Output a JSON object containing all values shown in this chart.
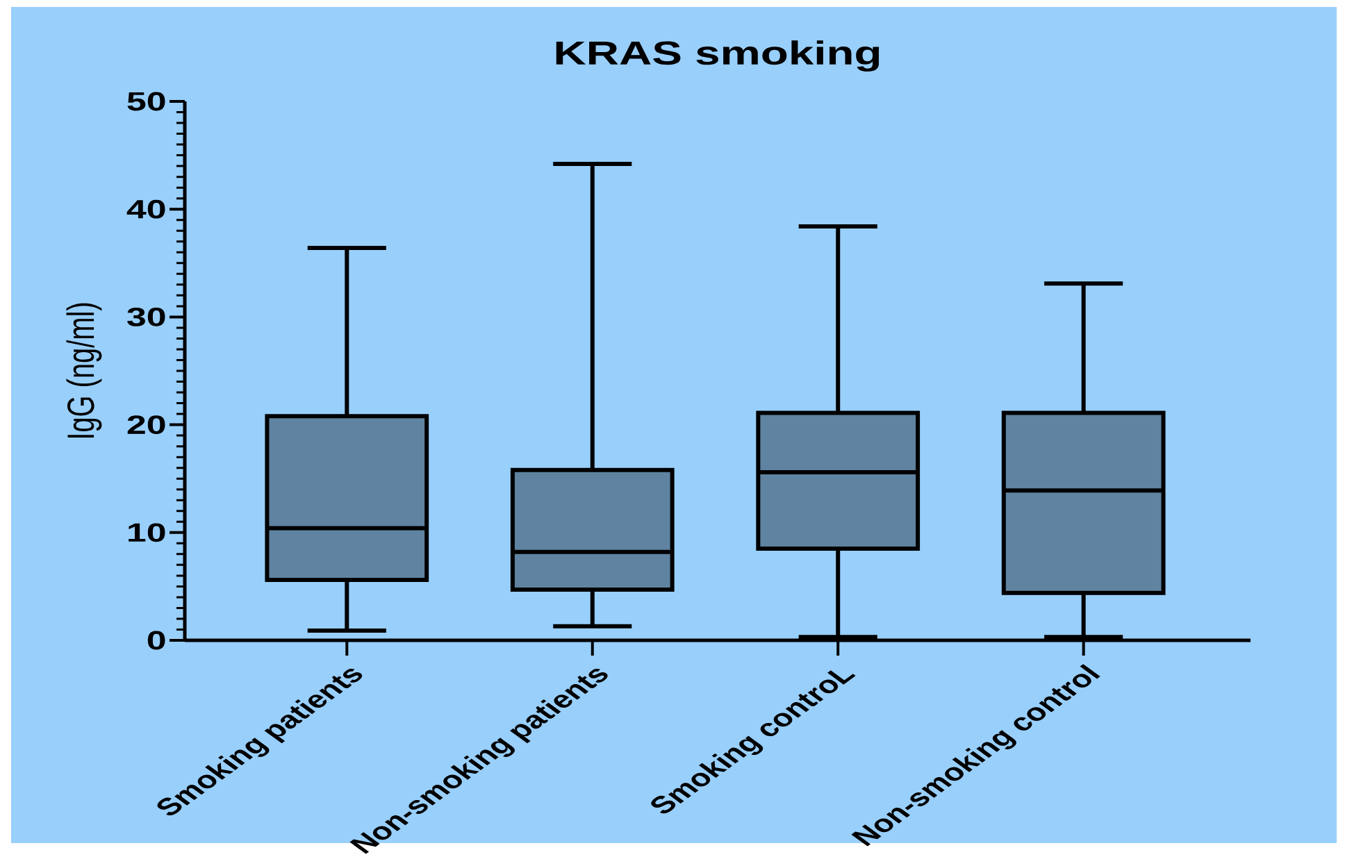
{
  "chart_data": {
    "type": "box",
    "title": "KRAS smoking",
    "ylabel": "IgG (ng/ml)",
    "categories": [
      "Smoking patients",
      "Non-smoking patients",
      "Smoking controL",
      "Non-smoking control"
    ],
    "boxes": [
      {
        "low": 0.9,
        "q1": 5.6,
        "median": 10.4,
        "q3": 20.8,
        "high": 36.4
      },
      {
        "low": 1.3,
        "q1": 4.7,
        "median": 8.2,
        "q3": 15.8,
        "high": 44.2
      },
      {
        "low": 0.3,
        "q1": 8.5,
        "median": 15.6,
        "q3": 21.1,
        "high": 38.4
      },
      {
        "low": 0.3,
        "q1": 4.4,
        "median": 13.9,
        "q3": 21.1,
        "high": 33.1
      }
    ],
    "color": "#5f83a0",
    "ylim": [
      0,
      50
    ],
    "yticks": [
      0,
      10,
      20,
      30,
      40,
      50
    ]
  }
}
